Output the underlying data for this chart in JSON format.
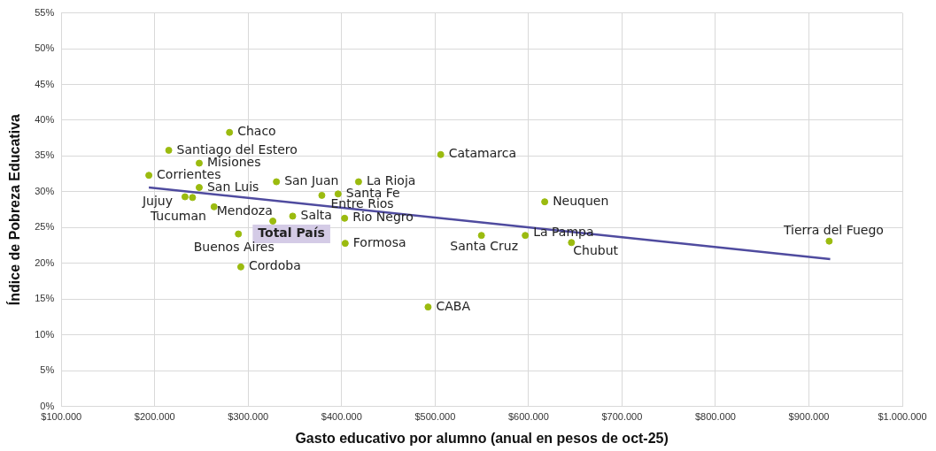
{
  "chart_data": {
    "type": "scatter",
    "xlabel": "Gasto educativo por alumno (anual en pesos de oct-25)",
    "ylabel": "Índice de Pobreza Educativa",
    "series": [
      {
        "marker": "circle",
        "color": "#9bbb0f",
        "x": [
          280000,
          215000,
          247600,
          193700,
          247600,
          232400,
          240400,
          263500,
          326400,
          347600,
          289500,
          292100,
          330200,
          378800,
          396200,
          418100,
          403200,
          403800,
          506000,
          617300,
          549600,
          596500,
          645900,
          921700,
          492500
        ],
        "values": [
          38.3,
          35.8,
          34.0,
          32.3,
          30.6,
          29.3,
          29.2,
          27.9,
          25.9,
          26.6,
          24.1,
          19.5,
          31.4,
          29.5,
          29.7,
          31.4,
          26.3,
          22.8,
          35.2,
          28.6,
          23.9,
          23.9,
          22.9,
          23.1,
          13.9
        ]
      },
      {
        "type": "line",
        "marker": "none",
        "color": "#4f4b9f",
        "x": [
          193700,
          922800
        ],
        "values": [
          30.6,
          20.6
        ]
      }
    ],
    "line_style": "solid",
    "grid": true,
    "legend": false,
    "xlim": [
      100000,
      1000000
    ],
    "xticks": [
      {
        "value": 100000,
        "label": "$100.000"
      },
      {
        "value": 200000,
        "label": "$200.000"
      },
      {
        "value": 300000,
        "label": "$300.000"
      },
      {
        "value": 400000,
        "label": "$400.000"
      },
      {
        "value": 500000,
        "label": "$500.000"
      },
      {
        "value": 600000,
        "label": "$600.000"
      },
      {
        "value": 700000,
        "label": "$700.000"
      },
      {
        "value": 800000,
        "label": "$800.000"
      },
      {
        "value": 900000,
        "label": "$900.000"
      },
      {
        "value": 1000000,
        "label": "$1.000.000"
      }
    ],
    "ylim": [
      0,
      55
    ],
    "yticks": [
      {
        "value": 0,
        "label": "0%"
      },
      {
        "value": 5,
        "label": "5%"
      },
      {
        "value": 10,
        "label": "10%"
      },
      {
        "value": 15,
        "label": "15%"
      },
      {
        "value": 20,
        "label": "20%"
      },
      {
        "value": 25,
        "label": "25%"
      },
      {
        "value": 30,
        "label": "30%"
      },
      {
        "value": 35,
        "label": "35%"
      },
      {
        "value": 40,
        "label": "40%"
      },
      {
        "value": 45,
        "label": "45%"
      },
      {
        "value": 50,
        "label": "50%"
      },
      {
        "value": 55,
        "label": "55%"
      }
    ],
    "annotations": [
      {
        "text": "Chaco",
        "x": 280000,
        "y": 38.3
      },
      {
        "text": "Santiago del Estero",
        "x": 215000,
        "y": 35.8
      },
      {
        "text": "Misiones",
        "x": 247600,
        "y": 34.0
      },
      {
        "text": "Corrientes",
        "x": 193700,
        "y": 32.3
      },
      {
        "text": "San Luis",
        "x": 247600,
        "y": 30.6
      },
      {
        "text": "Jujuy",
        "x": 232400,
        "y": 29.3
      },
      {
        "text": "Tucuman",
        "x": 240400,
        "y": 29.2
      },
      {
        "text": "Mendoza",
        "x": 263500,
        "y": 27.9
      },
      {
        "text": "Total País",
        "x": 326400,
        "y": 25.9
      },
      {
        "text": "Salta",
        "x": 347600,
        "y": 26.6
      },
      {
        "text": "Buenos Aires",
        "x": 289500,
        "y": 24.1
      },
      {
        "text": "Cordoba",
        "x": 292100,
        "y": 19.5
      },
      {
        "text": "San Juan",
        "x": 330200,
        "y": 31.4
      },
      {
        "text": "Entre Rios",
        "x": 378800,
        "y": 29.5
      },
      {
        "text": "Santa Fe",
        "x": 396200,
        "y": 29.7
      },
      {
        "text": "La Rioja",
        "x": 418100,
        "y": 31.4
      },
      {
        "text": "Rio Negro",
        "x": 403200,
        "y": 26.3
      },
      {
        "text": "Formosa",
        "x": 403800,
        "y": 22.8
      },
      {
        "text": "Catamarca",
        "x": 506000,
        "y": 35.2
      },
      {
        "text": "Neuquen",
        "x": 617300,
        "y": 28.6
      },
      {
        "text": "Santa Cruz",
        "x": 549600,
        "y": 23.9
      },
      {
        "text": "La Pampa",
        "x": 596500,
        "y": 23.9
      },
      {
        "text": "Chubut",
        "x": 645900,
        "y": 22.9
      },
      {
        "text": "Tierra del Fuego",
        "x": 921700,
        "y": 23.1
      },
      {
        "text": "CABA",
        "x": 492500,
        "y": 13.9
      }
    ]
  }
}
